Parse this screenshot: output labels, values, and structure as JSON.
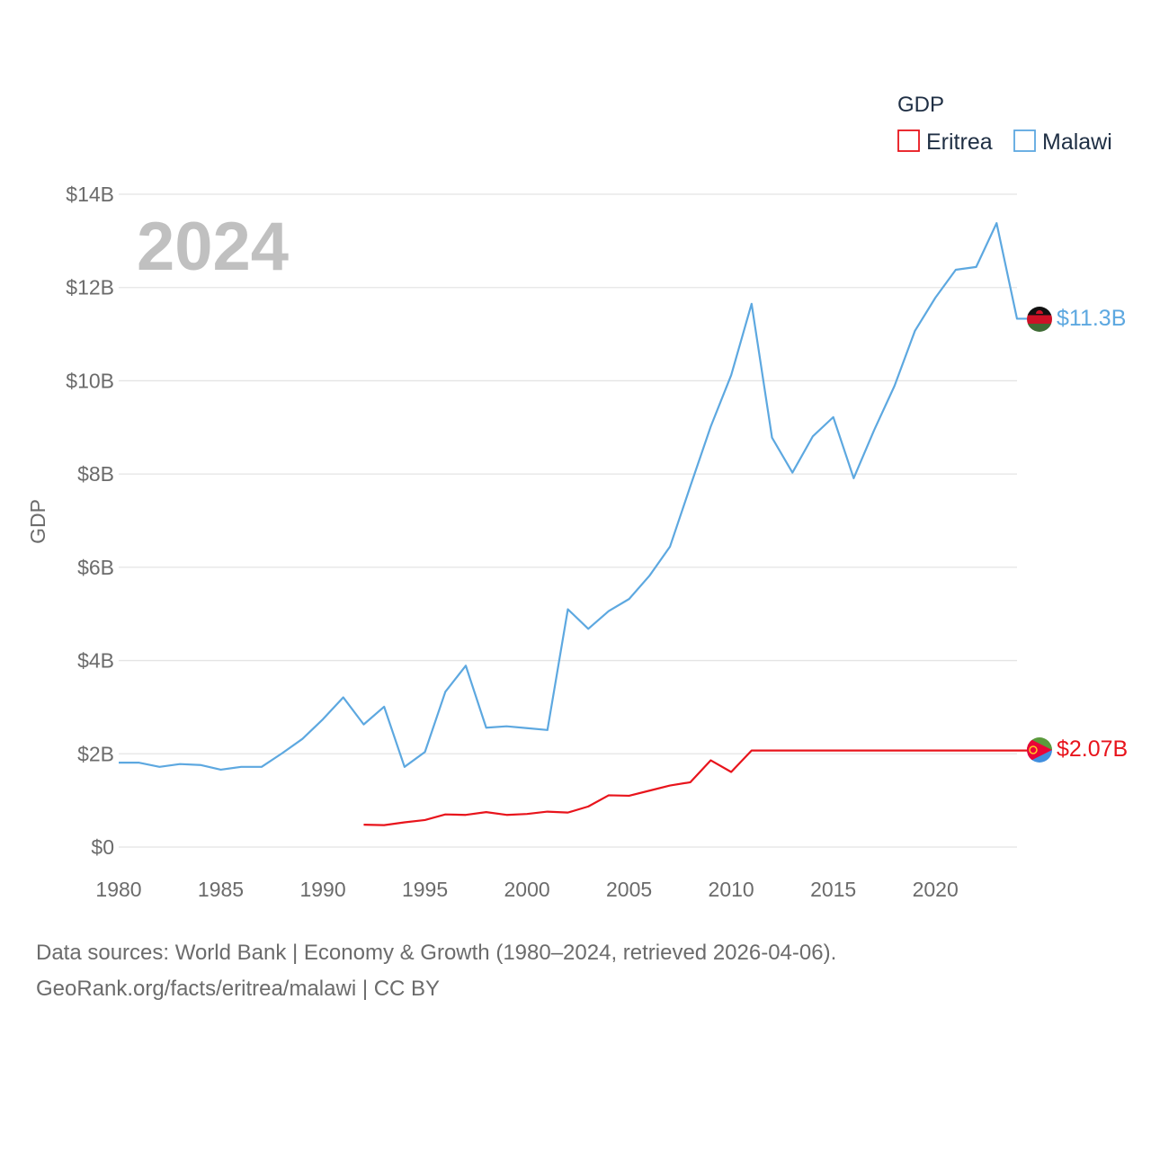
{
  "chart_data": {
    "type": "line",
    "title": "",
    "watermark_year": "2024",
    "xlabel": "",
    "ylabel": "GDP",
    "xlim": [
      1980,
      2024
    ],
    "ylim": [
      0,
      14
    ],
    "y_ticks": [
      {
        "value": 0,
        "label": "$0"
      },
      {
        "value": 2,
        "label": "$2B"
      },
      {
        "value": 4,
        "label": "$4B"
      },
      {
        "value": 6,
        "label": "$6B"
      },
      {
        "value": 8,
        "label": "$8B"
      },
      {
        "value": 10,
        "label": "$10B"
      },
      {
        "value": 12,
        "label": "$12B"
      },
      {
        "value": 14,
        "label": "$14B"
      }
    ],
    "x_ticks": [
      {
        "value": 1980,
        "label": "1980"
      },
      {
        "value": 1985,
        "label": "1985"
      },
      {
        "value": 1990,
        "label": "1990"
      },
      {
        "value": 1995,
        "label": "1995"
      },
      {
        "value": 2000,
        "label": "2000"
      },
      {
        "value": 2005,
        "label": "2005"
      },
      {
        "value": 2010,
        "label": "2010"
      },
      {
        "value": 2015,
        "label": "2015"
      },
      {
        "value": 2020,
        "label": "2020"
      }
    ],
    "legend": {
      "title": "GDP",
      "position": "top-right"
    },
    "series": [
      {
        "name": "Eritrea",
        "color": "#e8141c",
        "end_label": "$2.07B",
        "x": [
          1992,
          1993,
          1994,
          1995,
          1996,
          1997,
          1998,
          1999,
          2000,
          2001,
          2002,
          2003,
          2004,
          2005,
          2006,
          2007,
          2008,
          2009,
          2010,
          2011,
          2024
        ],
        "values": [
          0.48,
          0.47,
          0.53,
          0.58,
          0.7,
          0.69,
          0.75,
          0.69,
          0.71,
          0.76,
          0.74,
          0.87,
          1.11,
          1.1,
          1.21,
          1.32,
          1.39,
          1.86,
          1.61,
          2.07,
          2.07
        ]
      },
      {
        "name": "Malawi",
        "color": "#5da8e0",
        "end_label": "$11.3B",
        "x": [
          1980,
          1981,
          1982,
          1983,
          1984,
          1985,
          1986,
          1987,
          1988,
          1989,
          1990,
          1991,
          1992,
          1993,
          1994,
          1995,
          1996,
          1997,
          1998,
          1999,
          2000,
          2001,
          2002,
          2003,
          2004,
          2005,
          2006,
          2007,
          2008,
          2009,
          2010,
          2011,
          2012,
          2013,
          2014,
          2015,
          2016,
          2017,
          2018,
          2019,
          2020,
          2021,
          2022,
          2023,
          2024
        ],
        "values": [
          1.81,
          1.81,
          1.72,
          1.78,
          1.76,
          1.66,
          1.72,
          1.72,
          2.01,
          2.32,
          2.74,
          3.21,
          2.63,
          3.01,
          1.72,
          2.04,
          3.33,
          3.89,
          2.56,
          2.59,
          2.55,
          2.51,
          5.1,
          4.68,
          5.06,
          5.32,
          5.82,
          6.44,
          7.74,
          9.02,
          10.12,
          11.65,
          8.78,
          8.03,
          8.81,
          9.22,
          7.91,
          8.94,
          9.89,
          11.07,
          11.78,
          12.38,
          12.44,
          13.38,
          11.33
        ]
      }
    ]
  },
  "footer": {
    "line1": "Data sources: World Bank | Economy & Growth (1980–2024, retrieved 2026-04-06).",
    "line2": "GeoRank.org/facts/eritrea/malawi | CC BY"
  }
}
